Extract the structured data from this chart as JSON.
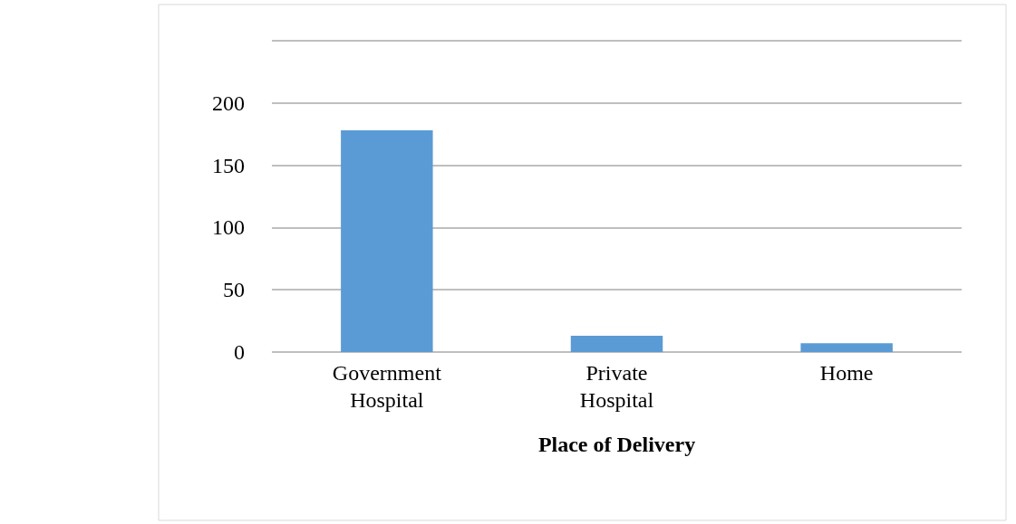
{
  "chart_data": {
    "type": "bar",
    "xlabel": "Place of Delivery",
    "categories": [
      "Government Hospital",
      "Private Hospital",
      "Home"
    ],
    "values": [
      178,
      13,
      7
    ],
    "color": "#5b9bd5",
    "ylim": [
      0,
      250
    ],
    "yticks": [
      0,
      50,
      100,
      150,
      200,
      {
        "value": 250,
        "label": null
      }
    ],
    "grid": "y"
  }
}
